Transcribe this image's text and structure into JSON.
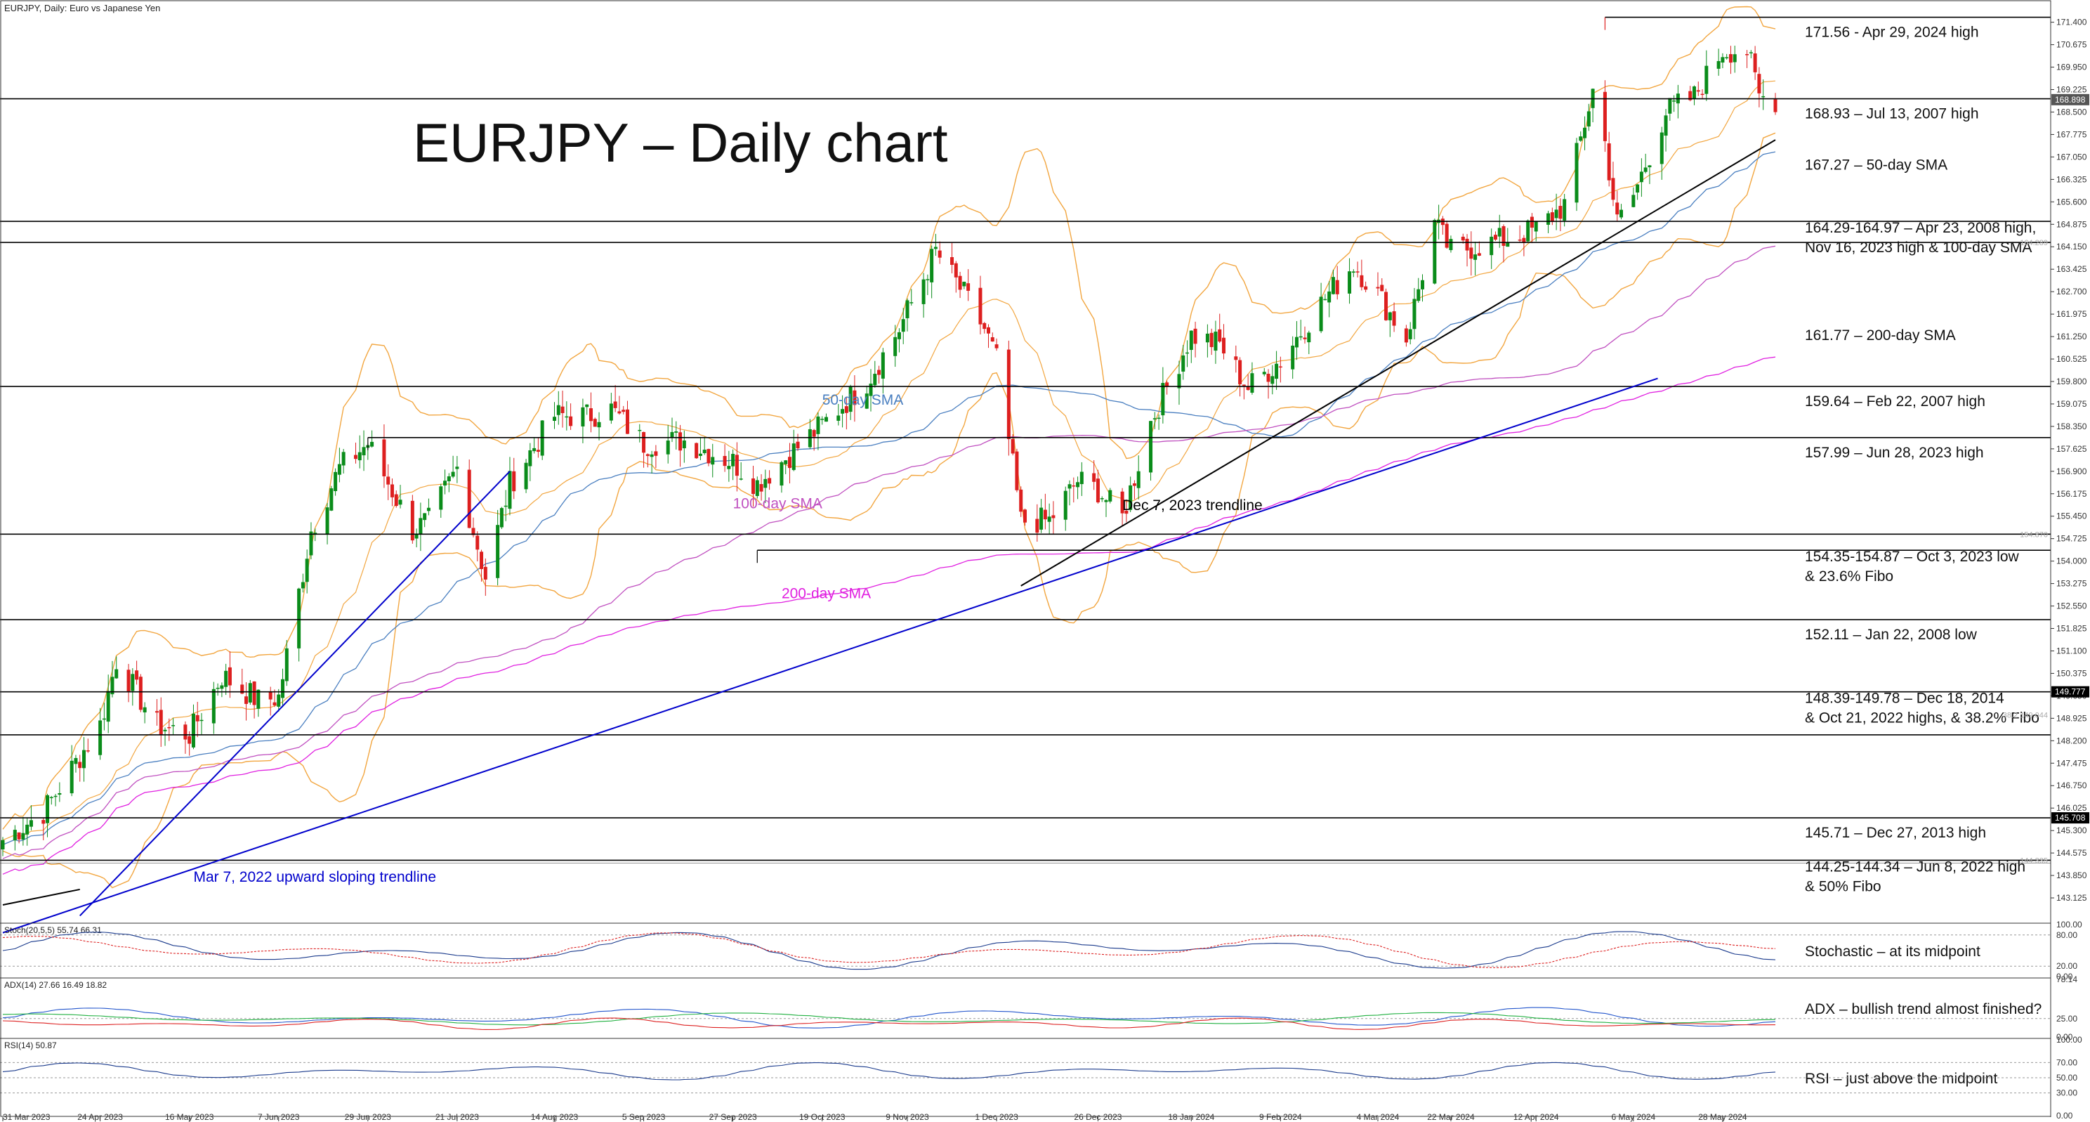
{
  "window": {
    "header": "EURJPY, Daily:  Euro vs Japanese Yen"
  },
  "chart_data": {
    "type": "candlestick",
    "title": "EURJPY – Daily chart",
    "symbol": "EURJPY",
    "timeframe": "Daily",
    "price_axis": {
      "range": [
        142.4,
        171.8
      ],
      "ticks": [
        "171.400",
        "170.675",
        "169.950",
        "169.225",
        "168.500",
        "167.775",
        "167.050",
        "166.325",
        "165.600",
        "164.875",
        "164.150",
        "163.425",
        "162.700",
        "161.975",
        "161.250",
        "160.525",
        "159.800",
        "159.075",
        "158.350",
        "157.625",
        "156.900",
        "156.175",
        "155.450",
        "154.725",
        "154.000",
        "153.275",
        "152.550",
        "151.825",
        "151.100",
        "150.375",
        "149.650",
        "148.925",
        "148.200",
        "147.475",
        "146.750",
        "146.025",
        "145.300",
        "144.575",
        "143.850",
        "143.125"
      ],
      "highlighted": [
        {
          "label": "168.898",
          "price": 168.9,
          "color": "#555555"
        },
        {
          "label": "149.777",
          "price": 149.78,
          "color": "#000000"
        },
        {
          "label": "145.708",
          "price": 145.71,
          "color": "#000000"
        }
      ],
      "faint_values": [
        {
          "label": "164.289",
          "price": 164.29
        },
        {
          "label": "154.870",
          "price": 154.87
        },
        {
          "label": "38.2 149.044",
          "price": 149.04
        },
        {
          "label": "144.335",
          "price": 144.34
        }
      ]
    },
    "date_axis": [
      "31 Mar 2023",
      "24 Apr 2023",
      "16 May 2023",
      "7 Jun 2023",
      "29 Jun 2023",
      "21 Jul 2023",
      "14 Aug 2023",
      "5 Sep 2023",
      "27 Sep 2023",
      "19 Oct 2023",
      "9 Nov 2023",
      "1 Dec 2023",
      "26 Dec 2023",
      "18 Jan 2024",
      "9 Feb 2024",
      "4 Mar 2024",
      "22 Mar 2024",
      "12 Apr 2024",
      "6 May 2024",
      "28 May 2024"
    ],
    "price_anchors": [
      [
        "31 Mar 2023",
        145.0
      ],
      [
        "10 Apr 2023",
        145.9
      ],
      [
        "24 Apr 2023",
        148.7
      ],
      [
        "28 Apr 2023",
        150.8
      ],
      [
        "8 May 2023",
        148.7
      ],
      [
        "16 May 2023",
        148.4
      ],
      [
        "24 May 2023",
        150.3
      ],
      [
        "2 Jun 2023",
        149.5
      ],
      [
        "7 Jun 2023",
        149.6
      ],
      [
        "15 Jun 2023",
        155.0
      ],
      [
        "22 Jun 2023",
        157.0
      ],
      [
        "29 Jun 2023",
        157.8
      ],
      [
        "10 Jul 2023",
        155.0
      ],
      [
        "14 Jul 2023",
        155.3
      ],
      [
        "21 Jul 2023",
        157.0
      ],
      [
        "28 Jul 2023",
        153.5
      ],
      [
        "3 Aug 2023",
        156.5
      ],
      [
        "14 Aug 2023",
        158.7
      ],
      [
        "22 Aug 2023",
        158.7
      ],
      [
        "28 Aug 2023",
        158.9
      ],
      [
        "5 Sep 2023",
        157.8
      ],
      [
        "15 Sep 2023",
        157.9
      ],
      [
        "27 Sep 2023",
        157.2
      ],
      [
        "3 Oct 2023",
        156.5
      ],
      [
        "19 Oct 2023",
        158.4
      ],
      [
        "30 Oct 2023",
        159.8
      ],
      [
        "7 Nov 2023",
        161.5
      ],
      [
        "16 Nov 2023",
        164.0
      ],
      [
        "23 Nov 2023",
        162.6
      ],
      [
        "28 Nov 2023",
        161.5
      ],
      [
        "1 Dec 2023",
        160.5
      ],
      [
        "7 Dec 2023",
        155.3
      ],
      [
        "14 Dec 2023",
        155.3
      ],
      [
        "21 Dec 2023",
        156.6
      ],
      [
        "26 Dec 2023",
        156.3
      ],
      [
        "1 Jan 2024",
        155.4
      ],
      [
        "8 Jan 2024",
        158.5
      ],
      [
        "18 Jan 2024",
        161.3
      ],
      [
        "25 Jan 2024",
        161.0
      ],
      [
        "1 Feb 2024",
        159.6
      ],
      [
        "9 Feb 2024",
        160.5
      ],
      [
        "20 Feb 2024",
        162.5
      ],
      [
        "27 Feb 2024",
        163.6
      ],
      [
        "4 Mar 2024",
        162.6
      ],
      [
        "11 Mar 2024",
        161.2
      ],
      [
        "18 Mar 2024",
        164.9
      ],
      [
        "22 Mar 2024",
        164.0
      ],
      [
        "2 Apr 2024",
        164.3
      ],
      [
        "12 Apr 2024",
        164.7
      ],
      [
        "19 Apr 2024",
        165.5
      ],
      [
        "26 Apr 2024",
        169.2
      ],
      [
        "29 Apr 2024",
        167.5
      ],
      [
        "2 May 2024",
        164.9
      ],
      [
        "6 May 2024",
        165.8
      ],
      [
        "14 May 2024",
        168.5
      ],
      [
        "21 May 2024",
        169.0
      ],
      [
        "28 May 2024",
        170.5
      ],
      [
        "3 Jun 2024",
        170.5
      ],
      [
        "6 Jun 2024",
        169.0
      ],
      [
        "10 Jun 2024",
        168.9
      ]
    ],
    "levels": [
      {
        "label": "171.56 - Apr 29, 2024 high",
        "price": 171.56,
        "from": "29 Apr 2024"
      },
      {
        "label": "168.93 – Jul 13, 2007 high",
        "price": 168.93
      },
      {
        "label": "167.27 – 50-day SMA",
        "price": 167.27,
        "label_only": true
      },
      {
        "label": "164.29-164.97 – Apr 23, 2008 high,",
        "label2": "Nov 16, 2023 high & 100-day SMA",
        "price": 164.97,
        "price2": 164.29
      },
      {
        "label": "161.77 – 200-day SMA",
        "price": 161.77,
        "label_only": true
      },
      {
        "label": "159.64 – Feb 22, 2007 high",
        "price": 159.64
      },
      {
        "label": "157.99 – Jun 28, 2023 high",
        "price": 157.99,
        "from": "29 Jun 2023"
      },
      {
        "label": "154.35-154.87 – Oct 3, 2023 low",
        "label2": "& 23.6% Fibo",
        "price": 154.35,
        "price2": 154.87,
        "from": "3 Oct 2023"
      },
      {
        "label": "152.11 – Jan 22, 2008 low",
        "price": 152.11
      },
      {
        "label": "148.39-149.78 – Dec 18, 2014",
        "label2": "& Oct 21, 2022 highs, & 38.2% Fibo",
        "price": 149.78,
        "price2": 148.39
      },
      {
        "label": "145.71 – Dec 27, 2013 high",
        "price": 145.71
      },
      {
        "label": "144.25-144.34 – Jun 8, 2022 high",
        "label2": "& 50% Fibo",
        "price": 144.34,
        "price2": 144.25
      }
    ],
    "trendlines": [
      {
        "label": "Mar 7, 2022 upward sloping trendline",
        "color": "#0000cc",
        "from": [
          "31 Mar 2023",
          142.0
        ],
        "to": [
          "12 May 2024",
          159.9
        ]
      },
      {
        "label": "",
        "color": "#0000cc",
        "from": [
          "19 Apr 2023",
          142.55
        ],
        "to": [
          "3 Aug 2023",
          156.9
        ]
      },
      {
        "label": "Dec 7, 2023 trendline",
        "color": "#000000",
        "from": [
          "7 Dec 2023",
          153.2
        ],
        "to": [
          "10 Jun 2024",
          167.6
        ]
      },
      {
        "label": "",
        "color": "#000000",
        "from": [
          "31 Mar 2023",
          142.9
        ],
        "to": [
          "19 Apr 2023",
          143.4
        ]
      }
    ],
    "annotations": [
      {
        "text": "50-day SMA",
        "color": "#4a7fc0"
      },
      {
        "text": "100-day SMA",
        "color": "#c050c0"
      },
      {
        "text": "200-day SMA",
        "color": "#e020e0"
      },
      {
        "text": "Dec 7, 2023 trendline",
        "color": "#000000"
      },
      {
        "text": "Mar 7, 2022 upward sloping trendline",
        "color": "#0000cc"
      }
    ],
    "colors": {
      "bull": "#0a8c1a",
      "bear": "#dd1f1f",
      "bollinger": "#f2a640",
      "sma50": "#4a7fc0",
      "sma100": "#c050c0",
      "sma200": "#e020e0",
      "trend_blue": "#0000cc"
    },
    "indicators": {
      "stochastic": {
        "header": "Stoch(20,5,5) 55.74 66.31",
        "ticks": [
          "100.00",
          "80.00",
          "20.00",
          "0.00"
        ],
        "comment": "Stochastic – at its midpoint"
      },
      "adx": {
        "header": "ADX(14) 27.66 16.49 18.82",
        "ticks": [
          "78.14",
          "25.00",
          "0.00"
        ],
        "comment": "ADX – bullish trend almost finished?"
      },
      "rsi": {
        "header": "RSI(14) 50.87",
        "ticks": [
          "100.00",
          "70.00",
          "50.00",
          "30.00",
          "0.00"
        ],
        "comment": "RSI – just above the midpoint"
      }
    }
  }
}
